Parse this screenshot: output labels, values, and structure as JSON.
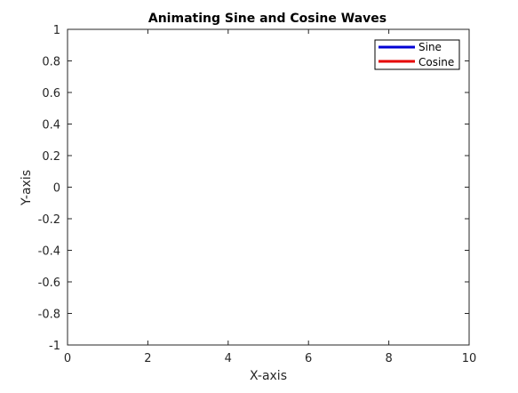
{
  "chart_data": {
    "type": "line",
    "title": "Animating Sine and Cosine Waves",
    "xlabel": "X-axis",
    "ylabel": "Y-axis",
    "xlim": [
      0,
      10
    ],
    "ylim": [
      -1,
      1
    ],
    "xticks": [
      0,
      2,
      4,
      6,
      8,
      10
    ],
    "xtick_labels": [
      "0",
      "2",
      "4",
      "6",
      "8",
      "10"
    ],
    "yticks": [
      1,
      0.8,
      0.6,
      0.4,
      0.2,
      0,
      -0.2,
      -0.4,
      -0.6,
      -0.8,
      -1
    ],
    "ytick_labels": [
      "1",
      "0.8",
      "0.6",
      "0.4",
      "0.2",
      "0",
      "-0.2",
      "-0.4",
      "-0.6",
      "-0.8",
      "-1"
    ],
    "grid": false,
    "legend_position": "top-right",
    "series": [
      {
        "name": "Sine",
        "color": "#0000d4",
        "x": [],
        "y": []
      },
      {
        "name": "Cosine",
        "color": "#e60000",
        "x": [],
        "y": []
      }
    ]
  }
}
